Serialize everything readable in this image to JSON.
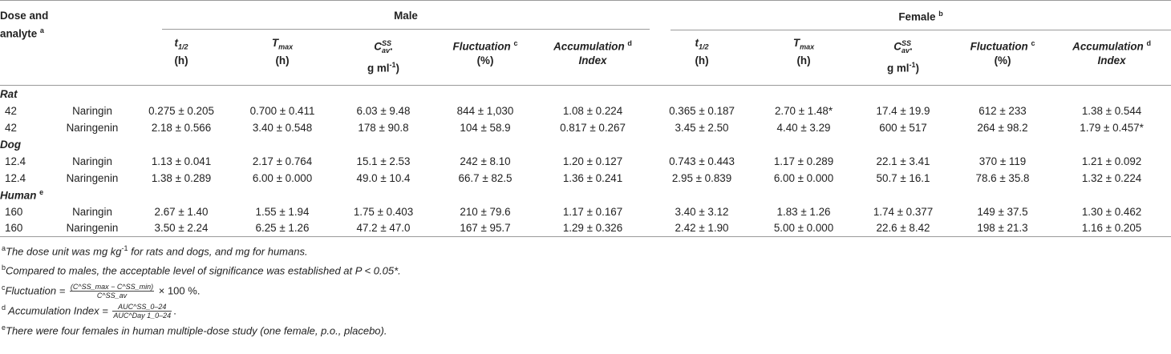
{
  "header": {
    "dose_analyte_line1": "Dose and",
    "dose_analyte_line2": "analyte",
    "dose_analyte_sup": "a",
    "male": "Male",
    "female": "Female",
    "female_sup": "b",
    "cols": {
      "thalf": "t",
      "thalf_sub": "1/2",
      "tmax": "T",
      "tmax_sub": "max",
      "unit_h": "(h)",
      "cav": "C",
      "cav_sup": "SS",
      "cav_sub": "av",
      "cav_dot": ".",
      "cav_unit": "g ml",
      "cav_unit_sup": "-1",
      "cav_unit_close": ")",
      "fluct": "Fluctuation",
      "fluct_sup": "c",
      "fluct_unit": "(%)",
      "accum": "Accumulation",
      "accum_sup": "d",
      "accum_line2": "Index"
    }
  },
  "sections": [
    {
      "label": "Rat",
      "label_sup": "",
      "rows": [
        {
          "dose": "42",
          "analyte": "Naringin",
          "m": [
            "0.275 ± 0.205",
            "0.700 ± 0.411",
            "6.03 ± 9.48",
            "844 ± 1,030",
            "1.08 ± 0.224"
          ],
          "f": [
            "0.365 ± 0.187",
            "2.70 ± 1.48*",
            "17.4 ± 19.9",
            "612 ± 233",
            "1.38 ± 0.544"
          ]
        },
        {
          "dose": "42",
          "analyte": "Naringenin",
          "m": [
            "2.18 ± 0.566",
            "3.40 ± 0.548",
            "178 ± 90.8",
            "104 ± 58.9",
            "0.817 ± 0.267"
          ],
          "f": [
            "3.45 ± 2.50",
            "4.40 ± 3.29",
            "600 ± 517",
            "264 ± 98.2",
            "1.79 ± 0.457*"
          ]
        }
      ]
    },
    {
      "label": "Dog",
      "label_sup": "",
      "rows": [
        {
          "dose": "12.4",
          "analyte": "Naringin",
          "m": [
            "1.13 ± 0.041",
            "2.17 ± 0.764",
            "15.1 ± 2.53",
            "242 ± 8.10",
            "1.20 ± 0.127"
          ],
          "f": [
            "0.743 ± 0.443",
            "1.17 ± 0.289",
            "22.1 ± 3.41",
            "370 ± 119",
            "1.21 ± 0.092"
          ]
        },
        {
          "dose": "12.4",
          "analyte": "Naringenin",
          "m": [
            "1.38 ± 0.289",
            "6.00 ± 0.000",
            "49.0 ± 10.4",
            "66.7 ± 82.5",
            "1.36 ± 0.241"
          ],
          "f": [
            "2.95 ± 0.839",
            "6.00 ± 0.000",
            "50.7 ± 16.1",
            "78.6 ± 35.8",
            "1.32 ± 0.224"
          ]
        }
      ]
    },
    {
      "label": "Human",
      "label_sup": "e",
      "rows": [
        {
          "dose": "160",
          "analyte": "Naringin",
          "m": [
            "2.67 ± 1.40",
            "1.55 ± 1.94",
            "1.75 ± 0.403",
            "210 ± 79.6",
            "1.17 ± 0.167"
          ],
          "f": [
            "3.40 ± 3.12",
            "1.83 ± 1.26",
            "1.74 ± 0.377",
            "149 ± 37.5",
            "1.30 ± 0.462"
          ]
        },
        {
          "dose": "160",
          "analyte": "Naringenin",
          "m": [
            "3.50 ± 2.24",
            "6.25 ± 1.26",
            "47.2 ± 47.0",
            "167 ± 95.7",
            "1.29 ± 0.326"
          ],
          "f": [
            "2.42 ± 1.90",
            "5.00 ± 0.000",
            "22.6 ± 8.42",
            "198 ± 21.3",
            "1.16 ± 0.205"
          ]
        }
      ]
    }
  ],
  "footnotes": {
    "a_mark": "a",
    "a_text1": "The dose unit was mg kg",
    "a_sup": "-1",
    "a_text2": " for rats and dogs, and mg for humans.",
    "b_mark": "b",
    "b_text": "Compared to males, the acceptable level of significance was established at P < 0.05*.",
    "c_mark": "c",
    "c_label": "Fluctuation = ",
    "c_num": "(C^SS_max − C^SS_min)",
    "c_den": "C^SS_av",
    "c_tail": " × 100 %.",
    "d_mark": "d",
    "d_label": " Accumulation  Index = ",
    "d_num": "AUC^SS_0–24",
    "d_den": "AUC^Day 1_0–24",
    "d_tail": ".",
    "e_mark": "e",
    "e_text": "There were four females in human multiple-dose study (one female, p.o., placebo)."
  }
}
